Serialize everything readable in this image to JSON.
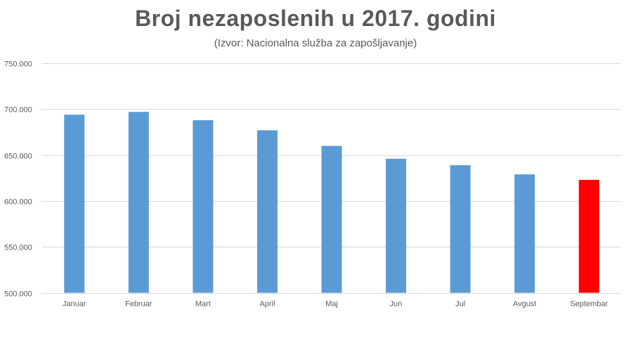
{
  "chart_data": {
    "type": "bar",
    "title": "Broj nezaposlenih u 2017. godini",
    "subtitle": "(Izvor: Nacionalna služba za zapošljavanje)",
    "xlabel": "",
    "ylabel": "",
    "categories": [
      "Januar",
      "Februar",
      "Mart",
      "April",
      "Maj",
      "Jun",
      "Jul",
      "Avgust",
      "Septembar"
    ],
    "values": [
      694000,
      697000,
      688000,
      677000,
      660000,
      646000,
      639000,
      629000,
      623000
    ],
    "bar_colors": [
      "#5b9bd5",
      "#5b9bd5",
      "#5b9bd5",
      "#5b9bd5",
      "#5b9bd5",
      "#5b9bd5",
      "#5b9bd5",
      "#5b9bd5",
      "#ff0000"
    ],
    "ylim": [
      500000,
      750000
    ],
    "yticks": [
      500000,
      550000,
      600000,
      650000,
      700000,
      750000
    ],
    "ytick_labels": [
      "500.000",
      "550.000",
      "600.000",
      "650.000",
      "700.000",
      "750.000"
    ],
    "grid": true,
    "gridline_color": "#d9d9d9",
    "text_color": "#595959"
  }
}
